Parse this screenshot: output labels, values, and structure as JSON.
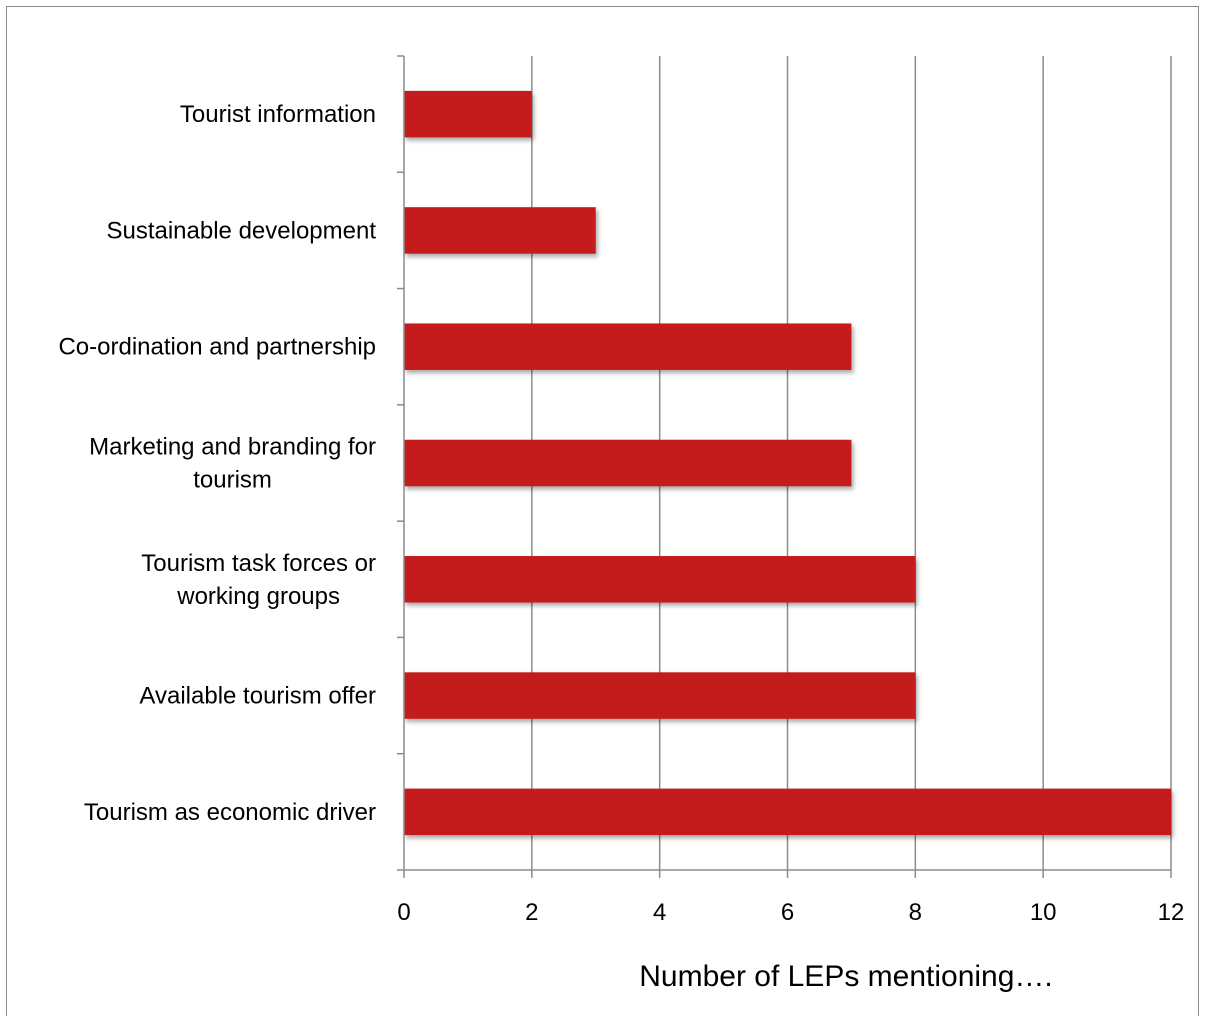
{
  "chart_data": {
    "type": "bar",
    "orientation": "horizontal",
    "categories": [
      "Tourist information",
      "Sustainable development",
      "Co-ordination and partnership",
      "Marketing and branding for tourism",
      "Tourism task forces or working groups",
      "Available tourism offer",
      "Tourism as economic driver"
    ],
    "category_label_lines": [
      [
        "Tourist information"
      ],
      [
        "Sustainable development"
      ],
      [
        "Co-ordination and partnership"
      ],
      [
        "Marketing and branding for",
        "tourism"
      ],
      [
        "Tourism task forces or",
        "working groups"
      ],
      [
        "Available tourism offer"
      ],
      [
        "Tourism as economic driver"
      ]
    ],
    "values": [
      2,
      3,
      7,
      7,
      8,
      8,
      12
    ],
    "title": "",
    "xlabel": "Number of LEPs mentioning….",
    "ylabel": "",
    "xlim": [
      0,
      12
    ],
    "xticks": [
      0,
      2,
      4,
      6,
      8,
      10,
      12
    ],
    "grid": "vertical",
    "legend": "none",
    "colors": {
      "bar": "#c41e1e",
      "grid": "#8c8c8c",
      "axis": "#8c8c8c"
    }
  }
}
